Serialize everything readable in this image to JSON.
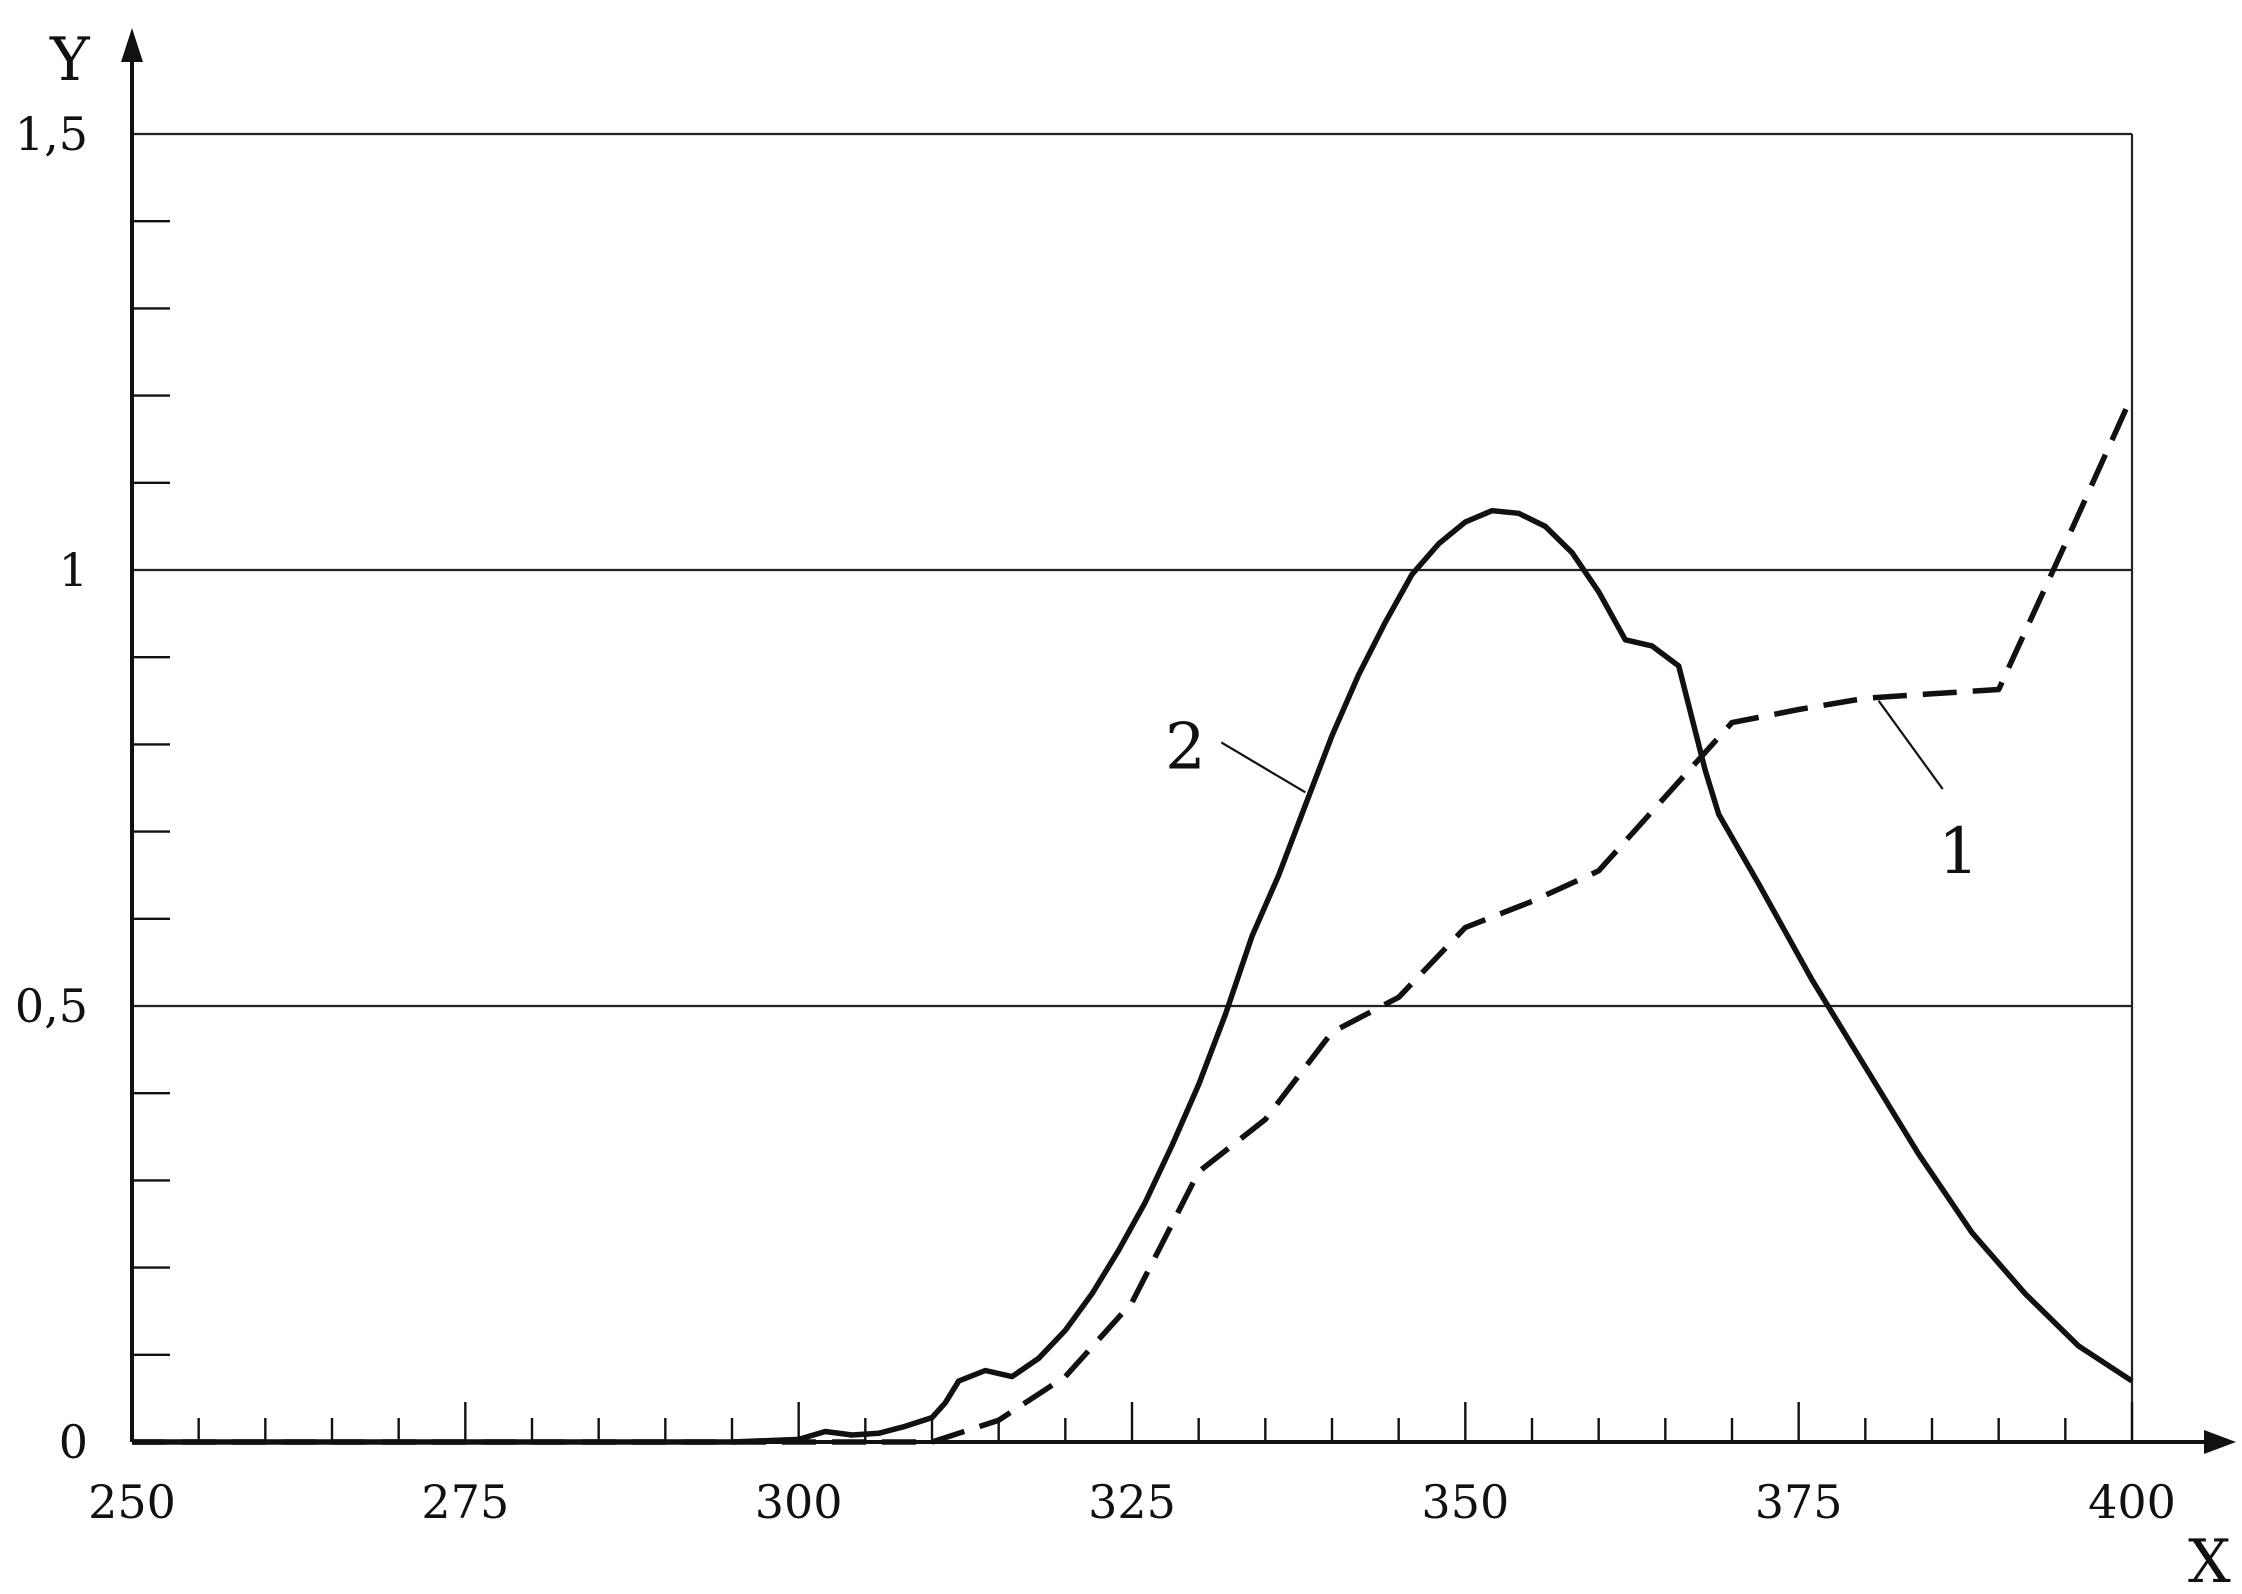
{
  "chart_data": {
    "type": "line",
    "title": "",
    "xlabel": "X",
    "ylabel": "Y",
    "xlim": [
      250,
      400
    ],
    "ylim": [
      0,
      1.5
    ],
    "grid": true,
    "x_ticks": [
      250,
      275,
      300,
      325,
      350,
      375,
      400
    ],
    "x_tick_labels": [
      "250",
      "275",
      "300",
      "325",
      "350",
      "375",
      "400"
    ],
    "y_ticks": [
      0,
      0.5,
      1,
      1.5
    ],
    "y_tick_labels": [
      "0",
      "0,5",
      "1",
      "1,5"
    ],
    "series": [
      {
        "name": "1",
        "style": "dashed",
        "color": "#111111",
        "label_at": [
          381,
          0.85
        ],
        "label_text_at": [
          387,
          0.68
        ],
        "points": [
          [
            250,
            0
          ],
          [
            295,
            0
          ],
          [
            300,
            0
          ],
          [
            305,
            0
          ],
          [
            310,
            0
          ],
          [
            315,
            0.025
          ],
          [
            320,
            0.075
          ],
          [
            325,
            0.16
          ],
          [
            330,
            0.31
          ],
          [
            335,
            0.37
          ],
          [
            340,
            0.47
          ],
          [
            345,
            0.51
          ],
          [
            350,
            0.59
          ],
          [
            355,
            0.62
          ],
          [
            360,
            0.655
          ],
          [
            365,
            0.74
          ],
          [
            370,
            0.825
          ],
          [
            375,
            0.84
          ],
          [
            380,
            0.853
          ],
          [
            385,
            0.858
          ],
          [
            390,
            0.863
          ],
          [
            395,
            1.03
          ],
          [
            400,
            1.2
          ]
        ]
      },
      {
        "name": "2",
        "style": "solid",
        "color": "#111111",
        "label_at": [
          338,
          0.745
        ],
        "label_text_at": [
          329,
          0.8
        ],
        "points": [
          [
            250,
            0
          ],
          [
            295,
            0
          ],
          [
            300,
            0.003
          ],
          [
            302,
            0.012
          ],
          [
            304,
            0.008
          ],
          [
            306,
            0.01
          ],
          [
            308,
            0.018
          ],
          [
            310,
            0.028
          ],
          [
            311,
            0.045
          ],
          [
            312,
            0.07
          ],
          [
            314,
            0.082
          ],
          [
            316,
            0.075
          ],
          [
            318,
            0.096
          ],
          [
            320,
            0.128
          ],
          [
            322,
            0.17
          ],
          [
            324,
            0.22
          ],
          [
            326,
            0.275
          ],
          [
            328,
            0.34
          ],
          [
            330,
            0.41
          ],
          [
            332,
            0.49
          ],
          [
            334,
            0.58
          ],
          [
            336,
            0.65
          ],
          [
            338,
            0.73
          ],
          [
            340,
            0.81
          ],
          [
            342,
            0.88
          ],
          [
            344,
            0.94
          ],
          [
            346,
            0.995
          ],
          [
            348,
            1.03
          ],
          [
            350,
            1.055
          ],
          [
            352,
            1.068
          ],
          [
            354,
            1.065
          ],
          [
            356,
            1.05
          ],
          [
            358,
            1.02
          ],
          [
            360,
            0.975
          ],
          [
            362,
            0.92
          ],
          [
            364,
            0.913
          ],
          [
            366,
            0.89
          ],
          [
            368,
            0.77
          ],
          [
            369,
            0.72
          ],
          [
            372,
            0.64
          ],
          [
            376,
            0.53
          ],
          [
            380,
            0.43
          ],
          [
            384,
            0.33
          ],
          [
            388,
            0.24
          ],
          [
            392,
            0.17
          ],
          [
            396,
            0.11
          ],
          [
            400,
            0.07
          ]
        ]
      }
    ]
  }
}
